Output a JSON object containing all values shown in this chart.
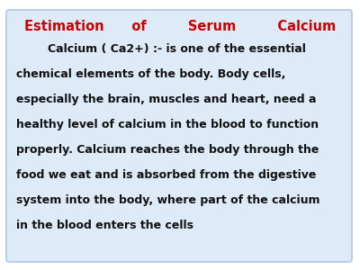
{
  "title_line": "Estimation      of         Serum         Calcium",
  "title_color": "#cc0000",
  "body_lines": [
    "        Calcium ( Ca2+) :- is one of the essential",
    "chemical elements of the body. Body cells,",
    "especially the brain, muscles and heart, need a",
    "healthy level of calcium in the blood to function",
    "properly. Calcium reaches the body through the",
    "food we eat and is absorbed from the digestive",
    "system into the body, where part of the calcium",
    "in the blood enters the cells"
  ],
  "body_color": "#111111",
  "bg_color": "#ddeaf7",
  "border_color": "#b0c8e0",
  "outer_bg": "#ffffff",
  "title_fontsize": 10.5,
  "body_fontsize": 9.0
}
